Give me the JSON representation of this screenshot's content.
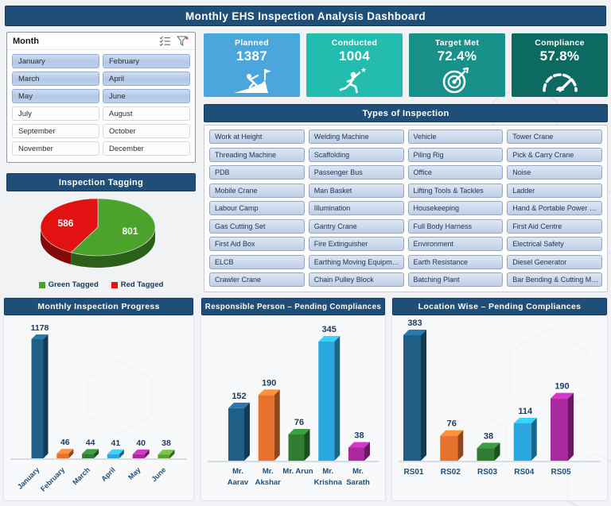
{
  "title": "Monthly EHS Inspection Analysis Dashboard",
  "theme": {
    "header_color": "#1F4E79",
    "background_color": "#F1F2F4",
    "value_label_color": "#1D3A5F",
    "axis_label_color": "#1F4E79"
  },
  "slicer": {
    "title": "Month",
    "icons": [
      "multi-select-icon",
      "clear-filter-icon"
    ],
    "months": [
      {
        "label": "January",
        "selected": true
      },
      {
        "label": "February",
        "selected": true
      },
      {
        "label": "March",
        "selected": true
      },
      {
        "label": "April",
        "selected": true
      },
      {
        "label": "May",
        "selected": true
      },
      {
        "label": "June",
        "selected": true
      },
      {
        "label": "July",
        "selected": false
      },
      {
        "label": "August",
        "selected": false
      },
      {
        "label": "September",
        "selected": false
      },
      {
        "label": "October",
        "selected": false
      },
      {
        "label": "November",
        "selected": false
      },
      {
        "label": "December",
        "selected": false
      }
    ]
  },
  "kpis": [
    {
      "label": "Planned",
      "value": "1387",
      "color": "#4AA6DC",
      "icon": "climber-flag-icon"
    },
    {
      "label": "Conducted",
      "value": "1004",
      "color": "#23BCAE",
      "icon": "runner-star-icon"
    },
    {
      "label": "Target Met",
      "value": "72.4%",
      "color": "#17918A",
      "icon": "target-arrow-icon"
    },
    {
      "label": "Compliance",
      "value": "57.8%",
      "color": "#0C6A61",
      "icon": "gauge-icon"
    }
  ],
  "types_of_inspection": {
    "header": "Types of Inspection",
    "items": [
      "Work at Height",
      "Welding Machine",
      "Vehicle",
      "Tower Crane",
      "Threading Machine",
      "Scaffolding",
      "Piling Rig",
      "Pick & Carry Crane",
      "PDB",
      "Passenger Bus",
      "Office",
      "Noise",
      "Mobile Crane",
      "Man Basket",
      "Lifting Tools & Tackles",
      "Ladder",
      "Labour Camp",
      "Illumination",
      "Housekeeping",
      "Hand & Portable Power …",
      "Gas Cutting Set",
      "Gantry Crane",
      "Full Body Harness",
      "First Aid Centre",
      "First Aid Box",
      "Fire Extinguisher",
      "Environment",
      "Electrical Safety",
      "ELCB",
      "Earthing Moving Equipm…",
      "Earth Resistance",
      "Diesel Generator",
      "Crawler Crane",
      "Chain Pulley Block",
      "Batching Plant",
      "Bar Bending & Cutting M…"
    ]
  },
  "tagging": {
    "header": "Inspection Tagging"
  },
  "bottom_charts": [
    {
      "header": "Monthly Inspection Progress"
    },
    {
      "header": "Responsible Person – Pending Compliances"
    },
    {
      "header": "Location Wise – Pending Compliances"
    }
  ],
  "chart_data": [
    {
      "id": "inspection-tagging",
      "type": "pie",
      "style": "3d",
      "labels": [
        "Green Tagged",
        "Red Tagged"
      ],
      "values": [
        801,
        586
      ],
      "colors": [
        "#4CA32C",
        "#E31212"
      ],
      "data_labels": true,
      "legend_position": "bottom"
    },
    {
      "id": "monthly-inspection-progress",
      "type": "bar",
      "style": "3d",
      "categories": [
        "January",
        "February",
        "March",
        "April",
        "May",
        "June"
      ],
      "values": [
        1178,
        46,
        44,
        41,
        40,
        38
      ],
      "colors": [
        "#1F5F86",
        "#E8722C",
        "#2F7D32",
        "#2BA6DE",
        "#A82A9E",
        "#5BA033"
      ],
      "data_labels": true,
      "gridlines": false,
      "label_rotation": -45,
      "ylim": [
        0,
        1200
      ]
    },
    {
      "id": "responsible-person-pending-compliances",
      "type": "bar",
      "style": "3d",
      "categories": [
        "Mr. Aarav",
        "Mr. Akshar",
        "Mr. Arun",
        "Mr. Krishna",
        "Mr. Sarath"
      ],
      "category_lines": [
        [
          "Mr.",
          "Aarav"
        ],
        [
          "Mr.",
          "Akshar"
        ],
        [
          "Mr. Arun"
        ],
        [
          "Mr.",
          "Krishna"
        ],
        [
          "Mr.",
          "Sarath"
        ]
      ],
      "values": [
        152,
        190,
        76,
        345,
        38
      ],
      "colors": [
        "#1F5F86",
        "#E8722C",
        "#2F7D32",
        "#2BA6DE",
        "#A82A9E"
      ],
      "data_labels": true,
      "gridlines": false,
      "ylim": [
        0,
        400
      ]
    },
    {
      "id": "location-wise-pending-compliances",
      "type": "bar",
      "style": "3d",
      "categories": [
        "RS01",
        "RS02",
        "RS03",
        "RS04",
        "RS05"
      ],
      "values": [
        383,
        76,
        38,
        114,
        190
      ],
      "colors": [
        "#1F5F86",
        "#E8722C",
        "#2F7D32",
        "#2BA6DE",
        "#A82A9E"
      ],
      "data_labels": true,
      "gridlines": false,
      "ylim": [
        0,
        400
      ]
    }
  ]
}
